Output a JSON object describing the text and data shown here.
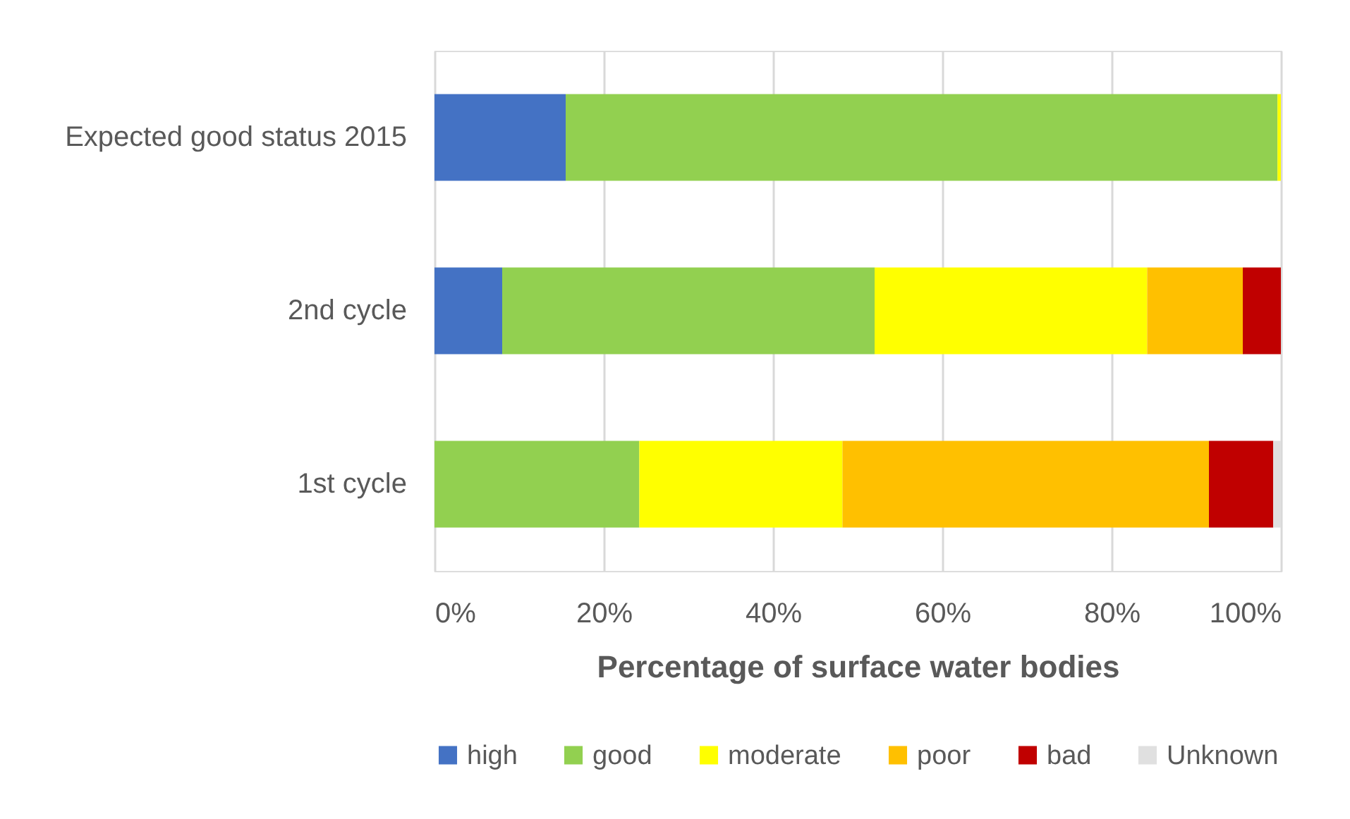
{
  "chart_data": {
    "type": "bar",
    "orientation": "horizontal",
    "stacked": true,
    "categories": [
      "Expected good status 2015",
      "2nd cycle",
      "1st cycle"
    ],
    "series": [
      {
        "name": "high",
        "color": "#4472c4",
        "values": [
          15.5,
          8.0,
          0
        ]
      },
      {
        "name": "good",
        "color": "#92d050",
        "values": [
          84.1,
          44.0,
          24.2
        ]
      },
      {
        "name": "moderate",
        "color": "#ffff00",
        "values": [
          0.4,
          32.2,
          24.0
        ]
      },
      {
        "name": "poor",
        "color": "#ffc000",
        "values": [
          0,
          11.3,
          43.3
        ]
      },
      {
        "name": "bad",
        "color": "#c00000",
        "values": [
          0,
          4.5,
          7.6
        ]
      },
      {
        "name": "Unknown",
        "color": "#e0e0e0",
        "values": [
          0,
          0,
          0.9
        ]
      }
    ],
    "xlabel": "Percentage of surface water bodies",
    "xlim": [
      0,
      100
    ],
    "xticks": [
      {
        "value": 0,
        "label": "0%"
      },
      {
        "value": 20,
        "label": "20%"
      },
      {
        "value": 40,
        "label": "40%"
      },
      {
        "value": 60,
        "label": "60%"
      },
      {
        "value": 80,
        "label": "80%"
      },
      {
        "value": 100,
        "label": "100%"
      }
    ],
    "grid": "x",
    "legend": "bottom"
  }
}
